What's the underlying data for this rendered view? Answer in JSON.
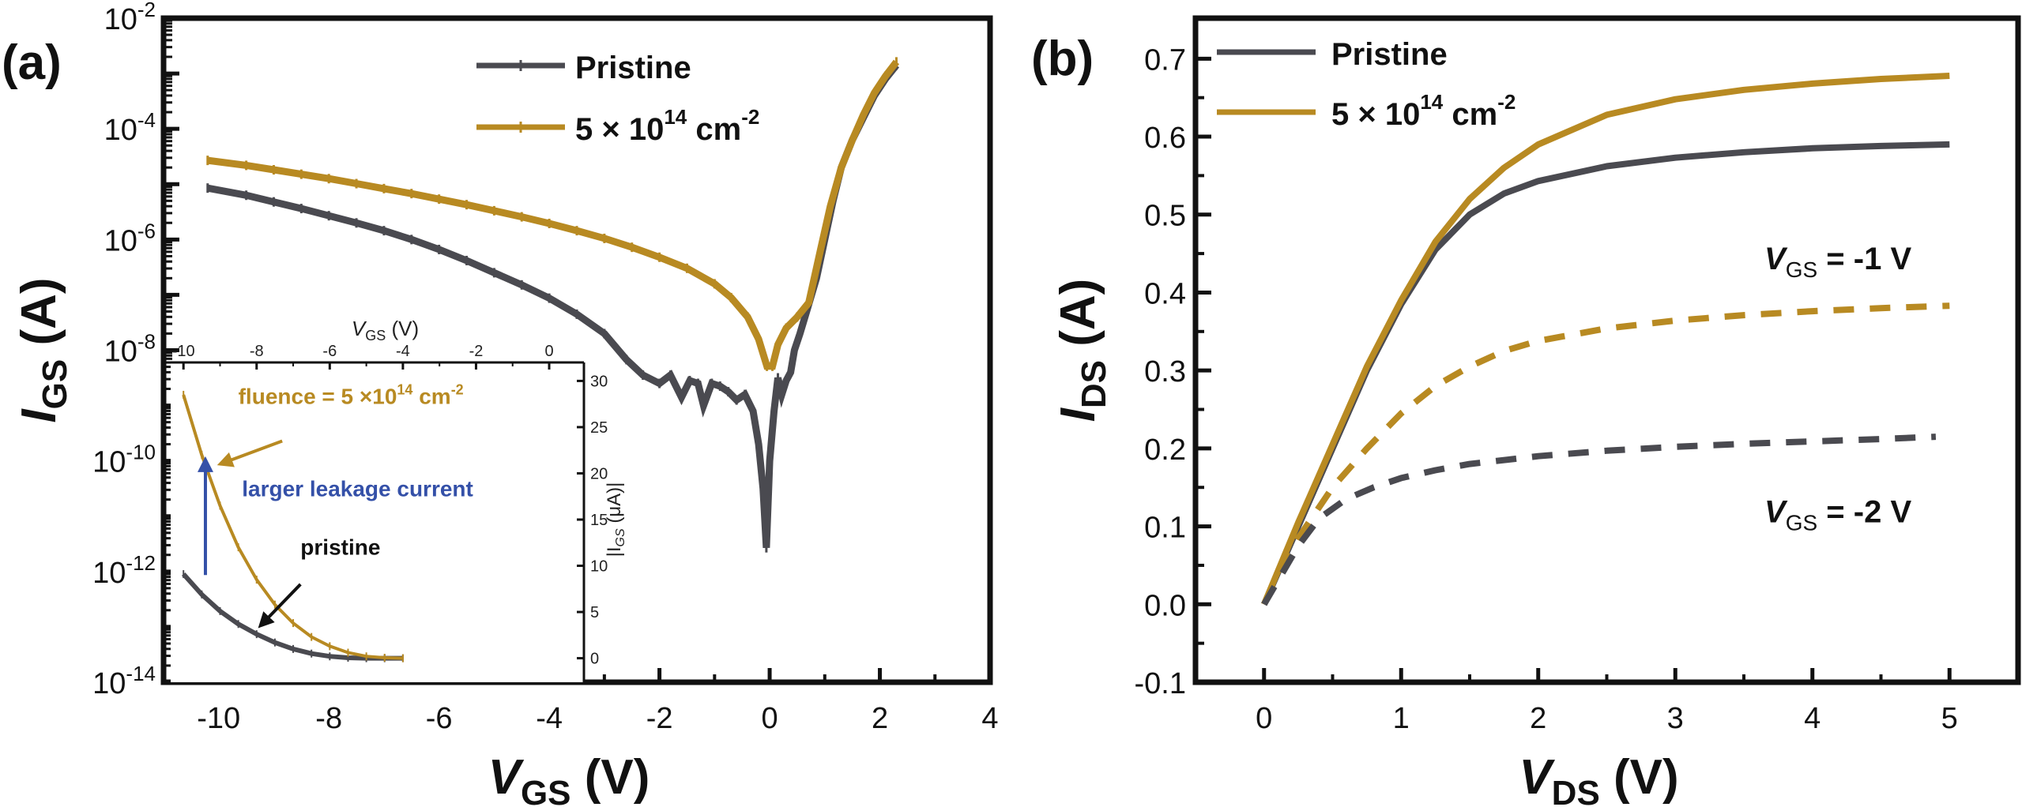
{
  "figure": {
    "panel_a_label": "(a)",
    "panel_b_label": "(b)"
  },
  "colors": {
    "pristine": "#4a4a50",
    "irradiated": "#b88a22",
    "annotation_blue": "#3450a8",
    "axis": "#111111"
  },
  "chart_data": [
    {
      "id": "panel-a",
      "type": "line",
      "title": "",
      "xlabel": "V_GS (V)",
      "xlabel_main": "V",
      "xlabel_sub": "GS",
      "xlabel_unit": "(V)",
      "ylabel": "I_GS (A)",
      "ylabel_main": "I",
      "ylabel_sub": "GS",
      "ylabel_unit": "(A)",
      "xlim": [
        -11,
        4
      ],
      "ylim": [
        1e-14,
        0.01
      ],
      "yscale": "log",
      "xticks": [
        -10,
        -8,
        -6,
        -4,
        -2,
        0,
        2,
        4
      ],
      "xtick_labels": [
        "-10",
        "-8",
        "-6",
        "-4",
        "-2",
        "0",
        "2",
        "4"
      ],
      "yticks_exp": [
        -14,
        -12,
        -10,
        -8,
        -6,
        -4,
        -2
      ],
      "ytick_labels": [
        "10",
        "10",
        "10",
        "10",
        "10",
        "10",
        "10"
      ],
      "ytick_exponents": [
        "-14",
        "-12",
        "-10",
        "-8",
        "-6",
        "-4",
        "-2"
      ],
      "grid": false,
      "legend_position": "top-right",
      "series": [
        {
          "name": "Pristine",
          "color_key": "pristine",
          "x": [
            -10.2,
            -9.5,
            -9.0,
            -8.5,
            -8.0,
            -7.5,
            -7.0,
            -6.5,
            -6.0,
            -5.5,
            -5.0,
            -4.5,
            -4.0,
            -3.5,
            -3.0,
            -2.6,
            -2.3,
            -2.0,
            -1.8,
            -1.6,
            -1.45,
            -1.3,
            -1.2,
            -1.05,
            -0.9,
            -0.75,
            -0.6,
            -0.45,
            -0.3,
            -0.2,
            -0.12,
            -0.06,
            0.0,
            0.08,
            0.15,
            0.22,
            0.3,
            0.38,
            0.45,
            0.55,
            0.7,
            0.85,
            1.0,
            1.15,
            1.3,
            1.5,
            1.7,
            1.9,
            2.1,
            2.3
          ],
          "log10_y": [
            -5.07,
            -5.2,
            -5.32,
            -5.44,
            -5.57,
            -5.7,
            -5.84,
            -6.0,
            -6.18,
            -6.38,
            -6.6,
            -6.82,
            -7.06,
            -7.35,
            -7.7,
            -8.17,
            -8.45,
            -8.6,
            -8.45,
            -8.85,
            -8.55,
            -8.6,
            -9.0,
            -8.6,
            -8.65,
            -8.75,
            -8.9,
            -8.8,
            -9.1,
            -9.7,
            -10.5,
            -11.57,
            -10.0,
            -9.1,
            -8.5,
            -8.8,
            -8.55,
            -8.4,
            -8.0,
            -7.7,
            -7.2,
            -6.7,
            -6.0,
            -5.3,
            -4.7,
            -4.2,
            -3.8,
            -3.4,
            -3.1,
            -2.85
          ]
        },
        {
          "name": "5 × 10^14 cm^-2",
          "color_key": "irradiated",
          "x": [
            -10.2,
            -9.5,
            -9.0,
            -8.5,
            -8.0,
            -7.5,
            -7.0,
            -6.5,
            -6.0,
            -5.5,
            -5.0,
            -4.5,
            -4.0,
            -3.5,
            -3.0,
            -2.5,
            -2.0,
            -1.5,
            -1.0,
            -0.7,
            -0.4,
            -0.2,
            -0.05,
            0.05,
            0.15,
            0.3,
            0.5,
            0.71,
            0.92,
            1.1,
            1.3,
            1.5,
            1.7,
            1.9,
            2.1,
            2.3
          ],
          "log10_y": [
            -4.57,
            -4.66,
            -4.74,
            -4.82,
            -4.9,
            -4.99,
            -5.08,
            -5.17,
            -5.27,
            -5.37,
            -5.48,
            -5.59,
            -5.71,
            -5.84,
            -5.98,
            -6.14,
            -6.32,
            -6.52,
            -6.8,
            -7.05,
            -7.4,
            -7.8,
            -8.29,
            -8.29,
            -7.9,
            -7.6,
            -7.4,
            -7.14,
            -6.2,
            -5.4,
            -4.7,
            -4.2,
            -3.75,
            -3.35,
            -3.05,
            -2.79
          ]
        }
      ],
      "annotations": []
    },
    {
      "id": "panel-a-inset",
      "type": "line",
      "title": "",
      "xlabel": "V_GS (V)",
      "xlabel_main": "V",
      "xlabel_sub": "GS",
      "xlabel_unit": "(V)",
      "xlabel_position": "top",
      "ylabel": "|I_GS (μA)|",
      "ylabel_text": "|I",
      "ylabel_sub": "GS",
      "ylabel_unit": " (μA)|",
      "ylabel_position": "right",
      "xlim": [
        -10.35,
        0.95
      ],
      "ylim": [
        -2.6,
        32
      ],
      "xticks": [
        -10,
        -8,
        -6,
        -4,
        -2,
        0
      ],
      "xtick_labels": [
        "-10",
        "-8",
        "-6",
        "-4",
        "-2",
        "0"
      ],
      "yticks": [
        0,
        5,
        10,
        15,
        20,
        25,
        30
      ],
      "ytick_labels": [
        "0",
        "5",
        "10",
        "15",
        "20",
        "25",
        "30"
      ],
      "grid": false,
      "series": [
        {
          "name": "pristine",
          "color_key": "pristine",
          "x": [
            -10.0,
            -9.5,
            -9.0,
            -8.5,
            -8.0,
            -7.5,
            -7.0,
            -6.5,
            -6.0,
            -5.5,
            -5.0,
            -4.5,
            -4.0
          ],
          "y": [
            9.1,
            6.9,
            5.1,
            3.7,
            2.6,
            1.7,
            1.0,
            0.5,
            0.2,
            0.05,
            0.0,
            0.0,
            0.0
          ]
        },
        {
          "name": "fluence = 5 ×10^14 cm^-2",
          "color_key": "irradiated",
          "x": [
            -10.0,
            -9.5,
            -9.0,
            -8.5,
            -8.0,
            -7.5,
            -7.0,
            -6.5,
            -6.0,
            -5.5,
            -5.0,
            -4.5,
            -4.0
          ],
          "y": [
            28.5,
            22.0,
            16.5,
            12.0,
            8.5,
            5.8,
            3.8,
            2.3,
            1.3,
            0.6,
            0.2,
            0.05,
            0.0
          ]
        }
      ],
      "annotations": [
        {
          "id": "fluence-label",
          "text": "fluence = 5 ×10",
          "sup": "14",
          "text2": " cm",
          "sup2": "-2",
          "color_key": "irradiated",
          "x": -8.5,
          "y": 27.5
        },
        {
          "id": "leakage-label",
          "text": "larger leakage current",
          "color_key": "annotation_blue",
          "x": -8.4,
          "y": 17.5
        },
        {
          "id": "pristine-label",
          "text": "pristine",
          "color_key": "axis",
          "x": -6.8,
          "y": 11.2
        },
        {
          "id": "blue-arrow",
          "type": "arrow",
          "from": [
            -9.4,
            9.0
          ],
          "to": [
            -9.4,
            21.5
          ],
          "color_key": "annotation_blue"
        },
        {
          "id": "fluence-arrow",
          "type": "arrow",
          "from": [
            -7.3,
            23.5
          ],
          "to": [
            -9.0,
            21.0
          ],
          "color_key": "irradiated"
        },
        {
          "id": "pristine-arrow",
          "type": "arrow",
          "from": [
            -6.8,
            8.0
          ],
          "to": [
            -7.9,
            3.5
          ],
          "color_key": "axis"
        }
      ]
    },
    {
      "id": "panel-b",
      "type": "line",
      "title": "",
      "xlabel": "V_DS (V)",
      "xlabel_main": "V",
      "xlabel_sub": "DS",
      "xlabel_unit": "(V)",
      "ylabel": "I_DS (A)",
      "ylabel_main": "I",
      "ylabel_sub": "DS",
      "ylabel_unit": "(A)",
      "xlim": [
        -0.5,
        5.5
      ],
      "ylim": [
        -0.1,
        0.752
      ],
      "xticks": [
        0,
        1,
        2,
        3,
        4,
        5
      ],
      "xtick_labels": [
        "0",
        "1",
        "2",
        "3",
        "4",
        "5"
      ],
      "yticks": [
        -0.1,
        0.0,
        0.1,
        0.2,
        0.3,
        0.4,
        0.5,
        0.6,
        0.7
      ],
      "ytick_labels": [
        "-0.1",
        "0.0",
        "0.1",
        "0.2",
        "0.3",
        "0.4",
        "0.5",
        "0.6",
        "0.7"
      ],
      "grid": false,
      "legend_position": "top-left",
      "series": [
        {
          "name": "Pristine",
          "legend": true,
          "vgs": "-1 V",
          "style": "solid",
          "color_key": "pristine",
          "x": [
            0,
            0.25,
            0.5,
            0.75,
            1.0,
            1.25,
            1.5,
            1.75,
            2.0,
            2.5,
            3.0,
            3.5,
            4.0,
            4.5,
            5.0
          ],
          "y": [
            0,
            0.1,
            0.2,
            0.3,
            0.385,
            0.455,
            0.5,
            0.527,
            0.543,
            0.562,
            0.573,
            0.58,
            0.585,
            0.588,
            0.59
          ]
        },
        {
          "name": "5 × 10^14 cm^-2",
          "legend": true,
          "vgs": "-1 V",
          "style": "solid",
          "color_key": "irradiated",
          "x": [
            0,
            0.25,
            0.5,
            0.75,
            1.0,
            1.25,
            1.5,
            1.75,
            2.0,
            2.5,
            3.0,
            3.5,
            4.0,
            4.5,
            5.0
          ],
          "y": [
            0,
            0.105,
            0.205,
            0.305,
            0.39,
            0.465,
            0.52,
            0.56,
            0.59,
            0.628,
            0.648,
            0.66,
            0.668,
            0.674,
            0.678
          ]
        },
        {
          "name": "5 × 10^14 cm^-2 (V_GS = -2 V)",
          "legend": false,
          "vgs": "-2 V",
          "style": "dashed",
          "color_key": "irradiated",
          "x": [
            0,
            0.25,
            0.5,
            0.75,
            1.0,
            1.25,
            1.5,
            1.75,
            2.0,
            2.5,
            3.0,
            3.5,
            4.0,
            4.5,
            5.0
          ],
          "y": [
            0,
            0.085,
            0.15,
            0.2,
            0.245,
            0.28,
            0.305,
            0.325,
            0.338,
            0.354,
            0.364,
            0.371,
            0.376,
            0.38,
            0.383
          ]
        },
        {
          "name": "Pristine (V_GS = -2 V)",
          "legend": false,
          "vgs": "-2 V",
          "style": "dashed",
          "color_key": "pristine",
          "x": [
            0,
            0.25,
            0.4,
            0.6,
            0.8,
            1.0,
            1.25,
            1.5,
            2.0,
            2.5,
            3.0,
            3.5,
            4.0,
            4.5,
            4.9
          ],
          "y": [
            0,
            0.075,
            0.11,
            0.135,
            0.15,
            0.162,
            0.172,
            0.18,
            0.19,
            0.197,
            0.202,
            0.206,
            0.209,
            0.212,
            0.215
          ]
        }
      ],
      "annotations": [
        {
          "id": "vgs-minus1-label",
          "main": "V",
          "sub": "GS",
          "rest": " = -1 V",
          "x": 3.65,
          "y": 0.43
        },
        {
          "id": "vgs-minus2-label",
          "main": "V",
          "sub": "GS",
          "rest": " = -2 V",
          "x": 3.65,
          "y": 0.105
        }
      ]
    }
  ],
  "legend_a": [
    {
      "label_main": "Pristine",
      "color_key": "pristine"
    },
    {
      "label_main": "5 × 10",
      "label_sup": "14",
      "label_tail": " cm",
      "label_sup2": "-2",
      "color_key": "irradiated"
    }
  ],
  "legend_b": [
    {
      "label_main": "Pristine",
      "color_key": "pristine"
    },
    {
      "label_main": "5 × 10",
      "label_sup": "14",
      "label_tail": " cm",
      "label_sup2": "-2",
      "color_key": "irradiated"
    }
  ]
}
